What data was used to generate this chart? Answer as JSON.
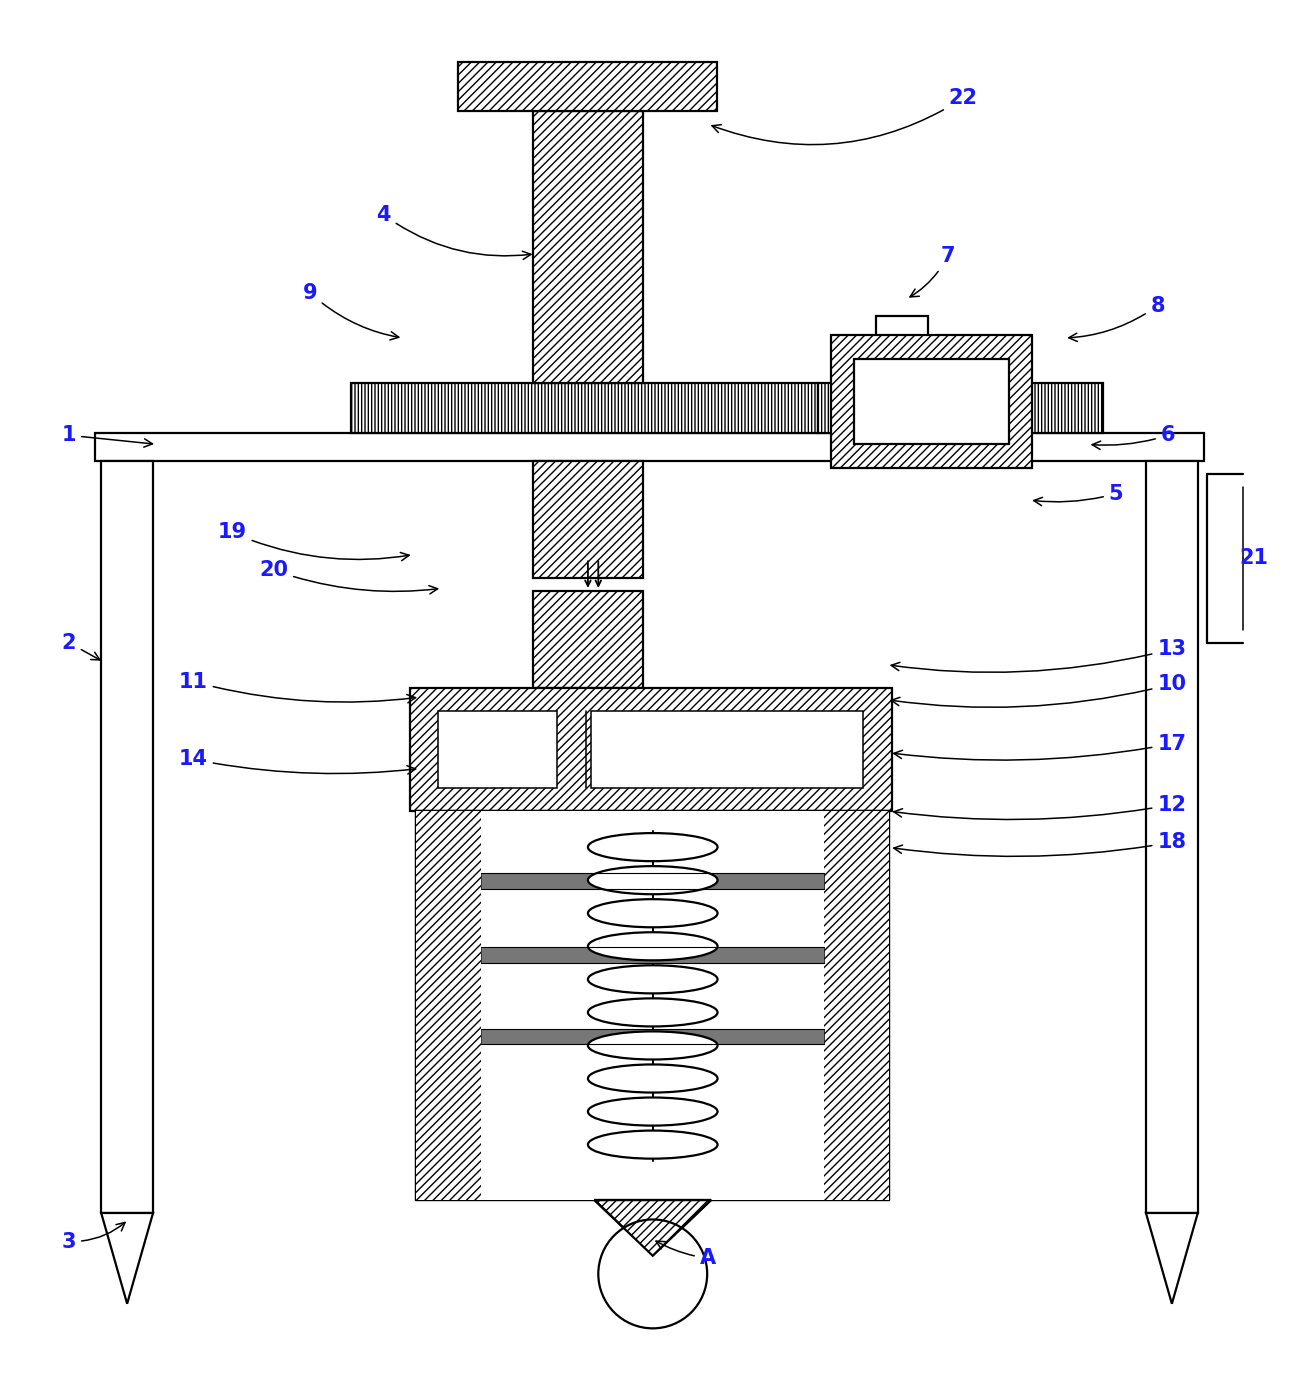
{
  "bg_color": "#ffffff",
  "lc": "#000000",
  "label_color": "#1a1aff",
  "figsize": [
    12.99,
    13.89
  ],
  "dpi": 100,
  "lw": 1.6,
  "lw_thin": 1.1
}
